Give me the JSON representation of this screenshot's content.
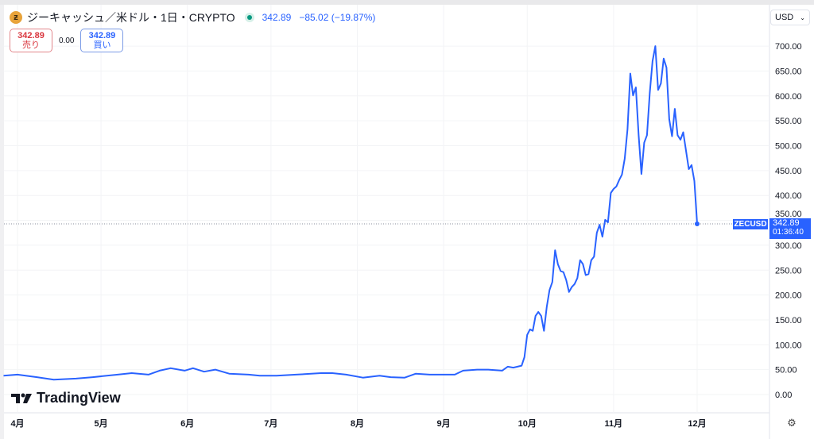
{
  "header": {
    "symbol_icon": "zcash-coin-icon",
    "symbol_glyph": "ƶ",
    "title": "ジーキャッシュ／米ドル・1日・CRYPTO",
    "market_status_icon": "market-open-dot-icon",
    "last": "342.89",
    "change": "−85.02 (−19.87%)"
  },
  "trade": {
    "sell_price": "342.89",
    "sell_label": "売り",
    "spread": "0.00",
    "buy_price": "342.89",
    "buy_label": "買い"
  },
  "currency": {
    "value": "USD",
    "icon": "chevron-down-icon"
  },
  "logo": {
    "text": "TradingView"
  },
  "settings_icon": "gear-icon",
  "price_tag": {
    "symbol": "ZECUSD",
    "price": "342.89",
    "countdown": "01:36:40"
  },
  "colors": {
    "line": "#2962ff",
    "tag": "#2962ff",
    "sell": "#d9363e",
    "up_dot": "#089981"
  },
  "chart_data": {
    "type": "line",
    "title": "",
    "xlabel": "",
    "ylabel": "",
    "ylim": [
      -30,
      760
    ],
    "grid": true,
    "y_ticks": [
      "0.00",
      "50.00",
      "100.00",
      "150.00",
      "200.00",
      "250.00",
      "300.00",
      "350.00",
      "400.00",
      "450.00",
      "500.00",
      "550.00",
      "600.00",
      "650.00",
      "700.00"
    ],
    "x_ticks": [
      {
        "label": "4月",
        "date": "04-01"
      },
      {
        "label": "5月",
        "date": "05-01"
      },
      {
        "label": "6月",
        "date": "06-01"
      },
      {
        "label": "7月",
        "date": "07-01"
      },
      {
        "label": "8月",
        "date": "08-01"
      },
      {
        "label": "9月",
        "date": "09-01"
      },
      {
        "label": "10月",
        "date": "10-01"
      },
      {
        "label": "11月",
        "date": "11-01"
      },
      {
        "label": "12月",
        "date": "12-01"
      }
    ],
    "series": [
      {
        "points": [
          [
            "03-27",
            38
          ],
          [
            "04-01",
            40
          ],
          [
            "04-08",
            35
          ],
          [
            "04-14",
            30
          ],
          [
            "04-22",
            32
          ],
          [
            "04-28",
            35
          ],
          [
            "05-07",
            40
          ],
          [
            "05-12",
            43
          ],
          [
            "05-18",
            40
          ],
          [
            "05-22",
            48
          ],
          [
            "05-26",
            53
          ],
          [
            "05-31",
            48
          ],
          [
            "06-03",
            53
          ],
          [
            "06-07",
            46
          ],
          [
            "06-11",
            50
          ],
          [
            "06-16",
            42
          ],
          [
            "06-23",
            40
          ],
          [
            "06-27",
            38
          ],
          [
            "07-03",
            38
          ],
          [
            "07-10",
            40
          ],
          [
            "07-19",
            43
          ],
          [
            "07-23",
            43
          ],
          [
            "07-28",
            40
          ],
          [
            "08-03",
            34
          ],
          [
            "08-09",
            38
          ],
          [
            "08-13",
            35
          ],
          [
            "08-18",
            34
          ],
          [
            "08-22",
            42
          ],
          [
            "08-27",
            40
          ],
          [
            "09-05",
            40
          ],
          [
            "09-08",
            48
          ],
          [
            "09-13",
            50
          ],
          [
            "09-17",
            50
          ],
          [
            "09-22",
            48
          ],
          [
            "09-24",
            56
          ],
          [
            "09-26",
            54
          ],
          [
            "09-29",
            58
          ],
          [
            "09-30",
            75
          ],
          [
            "10-01",
            120
          ],
          [
            "10-02",
            131
          ],
          [
            "10-03",
            128
          ],
          [
            "10-04",
            158
          ],
          [
            "10-05",
            166
          ],
          [
            "10-06",
            158
          ],
          [
            "10-07",
            128
          ],
          [
            "10-08",
            176
          ],
          [
            "10-09",
            210
          ],
          [
            "10-10",
            226
          ],
          [
            "10-11",
            290
          ],
          [
            "10-12",
            262
          ],
          [
            "10-13",
            248
          ],
          [
            "10-14",
            246
          ],
          [
            "10-15",
            230
          ],
          [
            "10-16",
            206
          ],
          [
            "10-17",
            216
          ],
          [
            "10-18",
            222
          ],
          [
            "10-19",
            234
          ],
          [
            "10-20",
            270
          ],
          [
            "10-21",
            262
          ],
          [
            "10-22",
            240
          ],
          [
            "10-23",
            242
          ],
          [
            "10-24",
            270
          ],
          [
            "10-25",
            277
          ],
          [
            "10-26",
            325
          ],
          [
            "10-27",
            341
          ],
          [
            "10-28",
            317
          ],
          [
            "10-29",
            351
          ],
          [
            "10-30",
            346
          ],
          [
            "10-31",
            405
          ],
          [
            "11-01",
            413
          ],
          [
            "11-02",
            418
          ],
          [
            "11-03",
            431
          ],
          [
            "11-04",
            442
          ],
          [
            "11-05",
            474
          ],
          [
            "11-06",
            533
          ],
          [
            "11-07",
            645
          ],
          [
            "11-08",
            601
          ],
          [
            "11-09",
            617
          ],
          [
            "11-10",
            521
          ],
          [
            "11-11",
            443
          ],
          [
            "11-12",
            506
          ],
          [
            "11-13",
            521
          ],
          [
            "11-14",
            606
          ],
          [
            "11-15",
            670
          ],
          [
            "11-16",
            700
          ],
          [
            "11-17",
            612
          ],
          [
            "11-18",
            625
          ],
          [
            "11-19",
            675
          ],
          [
            "11-20",
            657
          ],
          [
            "11-21",
            553
          ],
          [
            "11-22",
            519
          ],
          [
            "11-23",
            574
          ],
          [
            "11-24",
            521
          ],
          [
            "11-25",
            512
          ],
          [
            "11-26",
            527
          ],
          [
            "11-27",
            490
          ],
          [
            "11-28",
            453
          ],
          [
            "11-29",
            461
          ],
          [
            "11-30",
            429
          ],
          [
            "12-01",
            342.89
          ]
        ]
      }
    ],
    "last_value": 342.89
  }
}
